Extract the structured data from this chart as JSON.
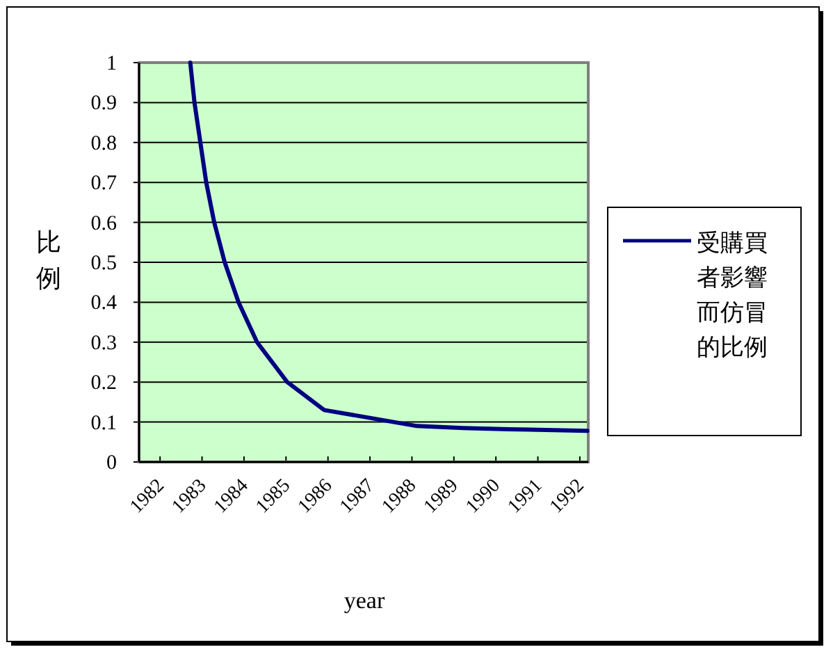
{
  "chart_data": {
    "type": "line",
    "xlabel": "year",
    "ylabel": "比例",
    "x": [
      1982.72,
      1982.82,
      1982.96,
      1983.1,
      1983.29,
      1983.54,
      1983.87,
      1984.31,
      1985.03,
      1985.91,
      1987.02,
      1988.12,
      1989.23,
      1990.33,
      1992.18
    ],
    "series": [
      {
        "name": "受購買者影響而仿冒的比例",
        "color": "#000080",
        "values": [
          1,
          0.9,
          0.8,
          0.7,
          0.6,
          0.5,
          0.4,
          0.3,
          0.2,
          0.13,
          0.11,
          0.09,
          0.085,
          0.082,
          0.078
        ]
      }
    ],
    "xlim": [
      1981.5,
      1992.2
    ],
    "xticks": [
      1982,
      1983,
      1984,
      1985,
      1986,
      1987,
      1988,
      1989,
      1990,
      1991,
      1992
    ],
    "ylim": [
      0,
      1
    ],
    "yticks": [
      0,
      0.1,
      0.2,
      0.3,
      0.4,
      0.5,
      0.6,
      0.7,
      0.8,
      0.9,
      1
    ],
    "grid": "y",
    "legend": "right",
    "marker": "none",
    "line_style": "solid"
  }
}
